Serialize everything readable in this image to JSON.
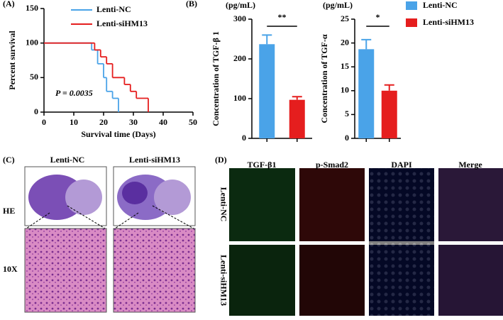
{
  "chart_data": [
    {
      "type": "step",
      "panel_label": "(A)",
      "ylabel": "Percent survival",
      "xlabel": "Survival time (Days)",
      "annotation": "P = 0.0035",
      "xlim": [
        0,
        50
      ],
      "xticks": [
        0,
        10,
        20,
        30,
        40,
        50
      ],
      "ylim": [
        0,
        150
      ],
      "yticks": [
        0,
        50,
        100,
        150
      ],
      "series": [
        {
          "name": "Lenti-NC",
          "color": "#4aa3e8",
          "x": [
            0,
            16,
            18,
            20,
            21,
            23,
            25
          ],
          "values": [
            100,
            90,
            70,
            50,
            30,
            20,
            0
          ]
        },
        {
          "name": "Lenti-siHM13",
          "color": "#e51e1e",
          "x": [
            0,
            17,
            19,
            21,
            23,
            27,
            29,
            31,
            35
          ],
          "values": [
            100,
            90,
            80,
            70,
            50,
            40,
            30,
            20,
            0
          ]
        }
      ]
    },
    {
      "type": "bar",
      "panel_label": "(B)",
      "unit": "(pg/mL)",
      "ylabel": "Concentration of TGF-β 1",
      "significance": "**",
      "categories": [
        null,
        null
      ],
      "values": [
        237,
        97
      ],
      "errors": [
        23,
        8
      ],
      "colors": [
        "#4aa3e8",
        "#e51e1e"
      ],
      "ylim": [
        0,
        300
      ],
      "yticks": [
        0,
        100,
        200,
        300
      ]
    },
    {
      "type": "bar",
      "unit": "(pg/mL)",
      "ylabel": "Concentration of TGF-α",
      "significance": "*",
      "categories": [
        null,
        null
      ],
      "values": [
        18.7,
        10
      ],
      "errors": [
        2,
        1.2
      ],
      "colors": [
        "#4aa3e8",
        "#e51e1e"
      ],
      "ylim": [
        0,
        25
      ],
      "yticks": [
        0,
        5,
        10,
        15,
        20,
        25
      ],
      "legend": [
        {
          "name": "Lenti-NC",
          "color": "#4aa3e8"
        },
        {
          "name": "Lenti-siHM13",
          "color": "#e51e1e"
        }
      ]
    }
  ],
  "panel_c": {
    "label": "(C)",
    "columns": [
      "Lenti-NC",
      "Lenti-siHM13"
    ],
    "rows": [
      "HE",
      "10X"
    ]
  },
  "panel_d": {
    "label": "(D)",
    "columns": [
      {
        "text": "TGF-β1",
        "color": "#22cc22"
      },
      {
        "text": "p-Smad2",
        "color": "#dd2222"
      },
      {
        "text": "DAPI",
        "color": "#2233cc"
      },
      {
        "text": "Merge",
        "color": "#000000"
      }
    ],
    "rows": [
      "Lenti-NC",
      "Lenti-siHM13"
    ]
  }
}
